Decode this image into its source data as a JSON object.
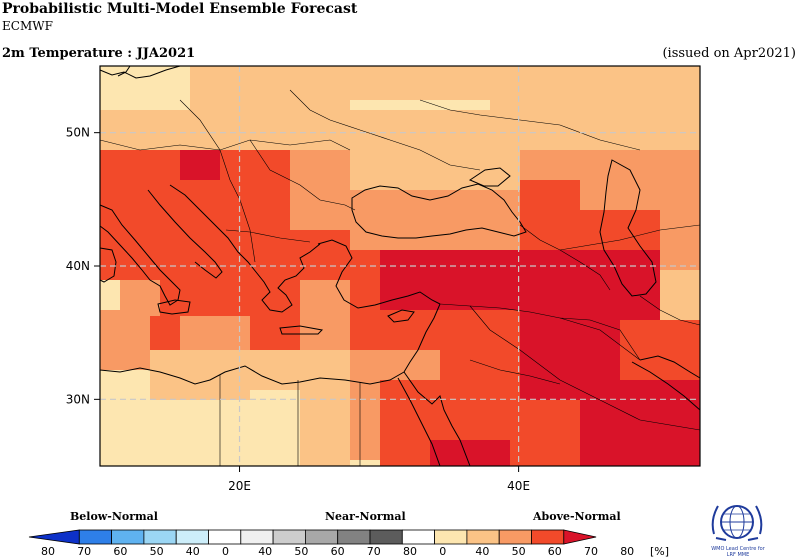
{
  "header": {
    "title": "Probabilistic Multi-Model Ensemble Forecast",
    "model": "ECMWF",
    "variable": "2m Temperature : JJA2021",
    "issued": "(issued on Apr2021)"
  },
  "map": {
    "lon_range": [
      10,
      53
    ],
    "lat_range": [
      25,
      55
    ],
    "lon_ticks": [
      {
        "value": 20,
        "label": "20E"
      },
      {
        "value": 40,
        "label": "40E"
      }
    ],
    "lat_ticks": [
      {
        "value": 30,
        "label": "30N"
      },
      {
        "value": 40,
        "label": "40N"
      },
      {
        "value": 50,
        "label": "50N"
      }
    ],
    "grid_style": "dashed",
    "colors": {
      "c40": "#fde6b0",
      "c50": "#fbc386",
      "c60": "#f89a64",
      "c70": "#f24a2a",
      "c80": "#d91329"
    }
  },
  "legend": {
    "groups": [
      {
        "label": "Below-Normal"
      },
      {
        "label": "Near-Normal"
      },
      {
        "label": "Above-Normal"
      }
    ],
    "tick_labels": [
      "80",
      "70",
      "60",
      "50",
      "40",
      "0",
      "40",
      "50",
      "60",
      "70",
      "80",
      "0",
      "40",
      "50",
      "60",
      "70",
      "80"
    ],
    "unit": "[%]",
    "below_colors": [
      "#0d31c8",
      "#2e7fe8",
      "#5fb2f0",
      "#9bd6f4",
      "#cdeefa"
    ],
    "near_colors": [
      "#f0f0f0",
      "#cdcdcd",
      "#a8a8a8",
      "#828282",
      "#5c5c5c"
    ],
    "above_colors": [
      "#fde6b0",
      "#fbc386",
      "#f89a64",
      "#f24a2a",
      "#d91329"
    ]
  },
  "logo": {
    "name": "wmo-emblem-icon",
    "text_line1": "WMO Lead Centre for",
    "text_line2": "LRF MME"
  }
}
